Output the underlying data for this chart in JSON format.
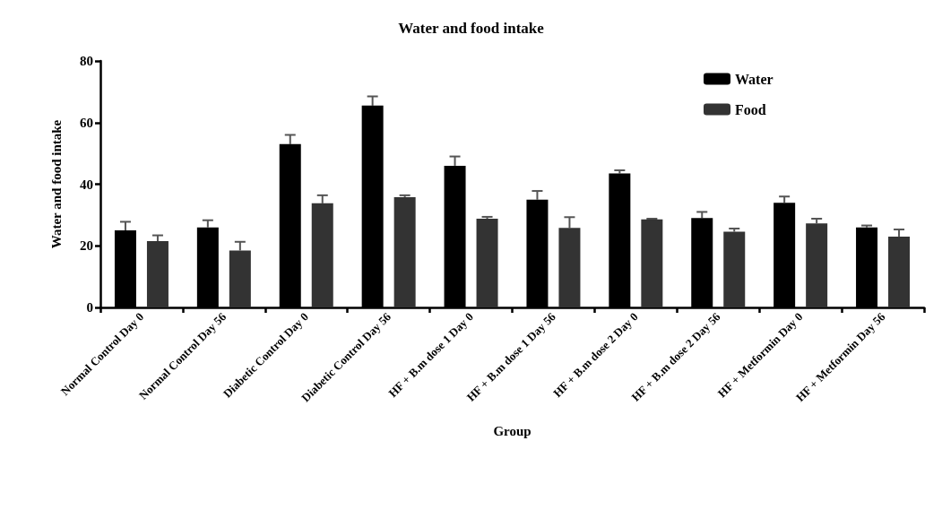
{
  "chart_data": {
    "type": "bar",
    "title": "Water and food intake",
    "xlabel": "Group",
    "ylabel": "Water and food intake",
    "categories": [
      "Normal Control Day 0",
      "Normal Control Day 56",
      "Diabetic Control Day 0",
      "Diabetic Control Day 56",
      "HF + B.m dose 1 Day 0",
      "HF + B.m dose 1 Day 56",
      "HF + B.m dose 2 Day 0",
      "HF + B.m dose 2 Day 56",
      "HF + Metformin Day 0",
      "HF + Metformin Day 56"
    ],
    "series": [
      {
        "name": "Water",
        "color": "#000000",
        "values": [
          25,
          26,
          53,
          65.5,
          46,
          35,
          43.5,
          29,
          34,
          26
        ],
        "errors": [
          [
            25,
            27.8
          ],
          [
            26,
            28.3
          ],
          [
            53,
            56
          ],
          [
            65.5,
            68.5
          ],
          [
            46,
            49
          ],
          [
            35,
            37.8
          ],
          [
            43.5,
            44.5
          ],
          [
            29,
            31
          ],
          [
            34,
            36
          ],
          [
            26,
            26.6
          ]
        ]
      },
      {
        "name": "Food",
        "color": "#333333",
        "values": [
          21.5,
          18.5,
          33.8,
          35.8,
          28.8,
          25.8,
          28.6,
          24.6,
          27.3,
          23
        ],
        "errors": [
          [
            21.5,
            23.4
          ],
          [
            18.5,
            21.3
          ],
          [
            33.8,
            36.4
          ],
          [
            35.8,
            36.4
          ],
          [
            28.8,
            29.4
          ],
          [
            25.8,
            29.3
          ],
          [
            28.6,
            28.8
          ],
          [
            24.6,
            25.6
          ],
          [
            27.3,
            28.8
          ],
          [
            23,
            25.3
          ]
        ]
      }
    ],
    "ylim": [
      0,
      80
    ],
    "yticks": [
      0,
      20,
      40,
      60,
      80
    ],
    "grid": false,
    "legend": "top right"
  }
}
